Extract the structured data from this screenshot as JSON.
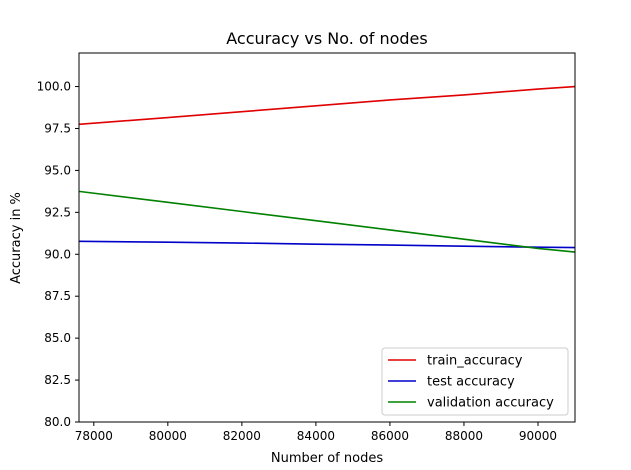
{
  "chart_data": {
    "type": "line",
    "title": "Accuracy vs No. of nodes",
    "xlabel": "Number of nodes",
    "ylabel": "Accuracy in %",
    "xlim": [
      77600,
      91000
    ],
    "ylim": [
      80.0,
      102.0
    ],
    "xticks": [
      78000,
      80000,
      82000,
      84000,
      86000,
      88000,
      90000
    ],
    "yticks": [
      80.0,
      82.5,
      85.0,
      87.5,
      90.0,
      92.5,
      95.0,
      97.5,
      100.0
    ],
    "xtick_labels": [
      "78000",
      "80000",
      "82000",
      "84000",
      "86000",
      "88000",
      "90000"
    ],
    "ytick_labels": [
      "80.0",
      "82.5",
      "85.0",
      "87.5",
      "90.0",
      "92.5",
      "95.0",
      "97.5",
      "100.0"
    ],
    "grid": false,
    "legend_position": "lower-right",
    "series": [
      {
        "name": "train_accuracy",
        "color": "#e00000",
        "x": [
          77600,
          80000,
          82000,
          84000,
          86000,
          88000,
          90000,
          91000
        ],
        "y": [
          97.75,
          98.15,
          98.5,
          98.85,
          99.2,
          99.5,
          99.85,
          100.0
        ]
      },
      {
        "name": "test accuracy",
        "color": "#0000c8",
        "x": [
          77600,
          80000,
          82000,
          84000,
          86000,
          88000,
          90000,
          91000
        ],
        "y": [
          90.77,
          90.72,
          90.67,
          90.6,
          90.55,
          90.48,
          90.42,
          90.4
        ]
      },
      {
        "name": "validation accuracy",
        "color": "#008000",
        "x": [
          77600,
          80000,
          82000,
          84000,
          86000,
          88000,
          90000,
          91000
        ],
        "y": [
          93.75,
          93.1,
          92.55,
          92.0,
          91.45,
          90.9,
          90.35,
          90.13
        ]
      }
    ]
  }
}
